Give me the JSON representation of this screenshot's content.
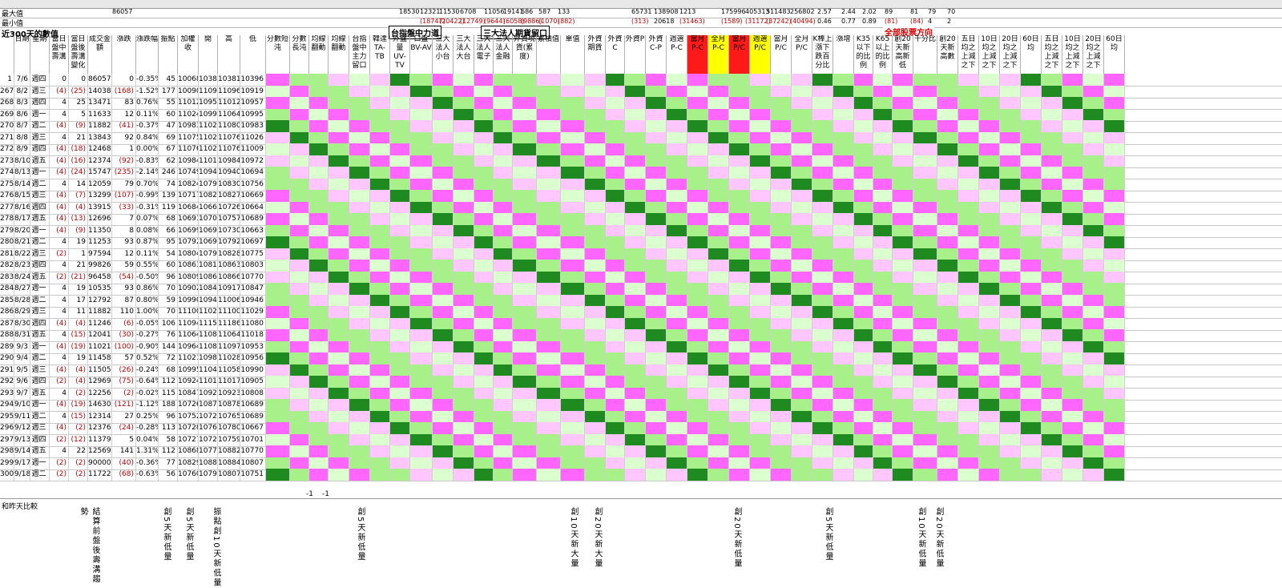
{
  "top": {
    "row1_label": "最大值",
    "row2_label": "最小值",
    "row1_values": [
      [
        "86057",
        ""
      ],
      [
        "18530",
        ""
      ],
      [
        "12321",
        ""
      ],
      [
        "11530",
        ""
      ],
      [
        "6708",
        ""
      ],
      [
        "11056",
        ""
      ],
      [
        "19141",
        ""
      ],
      [
        "686",
        ""
      ],
      [
        "587",
        ""
      ],
      [
        "133",
        ""
      ],
      [
        "65731",
        ""
      ],
      [
        "138908",
        ""
      ],
      [
        "1213",
        ""
      ],
      [
        "175996",
        ""
      ],
      [
        "405313",
        ""
      ],
      [
        "511483",
        ""
      ],
      [
        "256802",
        ""
      ],
      [
        "2.57",
        ""
      ],
      [
        "2.44",
        ""
      ],
      [
        "2.02",
        ""
      ],
      [
        "89",
        ""
      ],
      [
        "81",
        ""
      ],
      [
        "79",
        ""
      ],
      [
        "70",
        ""
      ]
    ],
    "row2_values": [
      [
        "(18747)",
        "neg"
      ],
      [
        "(20422)",
        "neg"
      ],
      [
        "(12749)",
        "neg"
      ],
      [
        "(9644)",
        "neg"
      ],
      [
        "(6058)",
        "neg"
      ],
      [
        "(9886)",
        "neg"
      ],
      [
        "(1070)",
        "neg"
      ],
      [
        "(882)",
        "neg"
      ],
      [
        "(313)",
        "neg"
      ],
      [
        "20618",
        ""
      ],
      [
        "(31463)",
        "neg"
      ],
      [
        "(1589)",
        "neg"
      ],
      [
        "(31172)",
        "neg"
      ],
      [
        "(37242)",
        "neg"
      ],
      [
        "(40494)",
        "neg"
      ],
      [
        "0.46",
        ""
      ],
      [
        "0.77",
        ""
      ],
      [
        "0.89",
        ""
      ],
      [
        "(81)",
        "neg"
      ],
      [
        "(84)",
        "neg"
      ],
      [
        "4",
        ""
      ],
      [
        "2",
        ""
      ]
    ]
  },
  "title_300": "近300天的數值",
  "sections": {
    "taifex": "台指盤中力道",
    "inst": "三大法人期貨留口",
    "all_dir": "全部股票方向"
  },
  "headers": [
    "",
    "日期",
    "星期",
    "當日盤中壽溝",
    "當日盤後壽溝變化",
    "成交金額",
    "漲跌",
    "漲跌幅",
    "振點",
    "加權收",
    "開",
    "高",
    "低",
    "分數短沌",
    "分數長沌",
    "均線翻動",
    "均線翻動",
    "台指盤中主力留口",
    "韓達TA-TB",
    "外盤量UV-TV",
    "口盤BV-AV",
    "三大法人小台",
    "三大法人大台",
    "三大法人電子",
    "三大法人金融",
    "外資現貨(累度)",
    "累積值",
    "單值",
    "外資期貨",
    "外資C",
    "外資P",
    "外資C-P",
    "週選P-C",
    "當月P-C",
    "全月P-C",
    "當月P/C",
    "週選P/C",
    "當月P/C",
    "全月P/C",
    "K棒上漲下跌百分比",
    "漲增",
    "K35以下的比例",
    "K65以上的比例",
    "創20天新高新低",
    "千分比",
    "創20天新高數",
    "五日均之上減之下",
    "10日均之上減之下",
    "20日均之上減之下",
    "60日均",
    "五日均之上減之下",
    "10日均之上減之下",
    "20日均之上減之下",
    "60日均"
  ],
  "rows": [
    {
      "n": "1",
      "date": "7/6",
      "wd": "週四",
      "v": [
        "0",
        "0",
        "86057",
        "0",
        "-0.35%",
        "45",
        "10068",
        "10381",
        "10381",
        "10396"
      ]
    },
    {
      "n": "267",
      "date": "8/2",
      "wd": "週三",
      "v": [
        "(4)",
        "(25)",
        "140389",
        "(168)",
        "-1.52%",
        "177",
        "10090",
        "11096",
        "11096",
        "10919"
      ]
    },
    {
      "n": "268",
      "date": "8/3",
      "wd": "週四",
      "v": [
        "4",
        "25",
        "134716",
        "83",
        "0.76%",
        "55",
        "11012",
        "10957",
        "11012",
        "10957"
      ]
    },
    {
      "n": "269",
      "date": "8/6",
      "wd": "週一",
      "v": [
        "4",
        "5",
        "116336",
        "12",
        "0.11%",
        "60",
        "11024",
        "10997",
        "11064",
        "10995"
      ]
    },
    {
      "n": "270",
      "date": "8/7",
      "wd": "週二",
      "v": [
        "(4)",
        "(9)",
        "118827",
        "(41)",
        "-0.37%",
        "47",
        "10983",
        "11025",
        "11080",
        "10983"
      ]
    },
    {
      "n": "271",
      "date": "8/8",
      "wd": "週三",
      "v": [
        "4",
        "21",
        "138432",
        "92",
        "0.84%",
        "69",
        "11075",
        "11026",
        "11076",
        "11026"
      ]
    },
    {
      "n": "272",
      "date": "8/9",
      "wd": "週四",
      "v": [
        "(4)",
        "(18)",
        "124687",
        "1",
        "0.00%",
        "67",
        "11076",
        "11023",
        "11076",
        "11009"
      ]
    },
    {
      "n": "273",
      "date": "8/10",
      "wd": "週五",
      "v": [
        "(4)",
        "(16)",
        "123745",
        "(92)",
        "-0.83%",
        "62",
        "10984",
        "11010",
        "10984",
        "10972"
      ]
    },
    {
      "n": "274",
      "date": "8/13",
      "wd": "週一",
      "v": [
        "(4)",
        "(24)",
        "157474",
        "(235)",
        "-2.14%",
        "246",
        "10749",
        "10940",
        "10940",
        "10694"
      ]
    },
    {
      "n": "275",
      "date": "8/14",
      "wd": "週二",
      "v": [
        "4",
        "14",
        "120596",
        "79",
        "0.70%",
        "74",
        "10824",
        "10798",
        "10830",
        "10756"
      ]
    },
    {
      "n": "276",
      "date": "8/15",
      "wd": "週三",
      "v": [
        "(4)",
        "(7)",
        "132990",
        "(107)",
        "-0.99%",
        "139",
        "10717",
        "10827",
        "10827",
        "10669"
      ]
    },
    {
      "n": "277",
      "date": "8/16",
      "wd": "週四",
      "v": [
        "(4)",
        "(4)",
        "139151",
        "(33)",
        "-0.31%",
        "119",
        "10684",
        "10664",
        "10726",
        "10664"
      ]
    },
    {
      "n": "278",
      "date": "8/17",
      "wd": "週五",
      "v": [
        "(4)",
        "(13)",
        "126965",
        "7",
        "0.07%",
        "68",
        "10691",
        "10708",
        "10757",
        "10689"
      ]
    },
    {
      "n": "279",
      "date": "8/20",
      "wd": "週一",
      "v": [
        "(4)",
        "(9)",
        "113508",
        "8",
        "0.08%",
        "66",
        "10699",
        "10699",
        "10730",
        "10663"
      ]
    },
    {
      "n": "280",
      "date": "8/21",
      "wd": "週二",
      "v": [
        "4",
        "19",
        "112531",
        "93",
        "0.87%",
        "95",
        "10792",
        "10697",
        "10792",
        "10697"
      ]
    },
    {
      "n": "281",
      "date": "8/22",
      "wd": "週三",
      "v": [
        "(2)",
        "1",
        "97594",
        "12",
        "0.11%",
        "54",
        "10804",
        "10790",
        "10828",
        "10775"
      ]
    },
    {
      "n": "282",
      "date": "8/23",
      "wd": "週四",
      "v": [
        "4",
        "21",
        "99826",
        "59",
        "0.55%",
        "60",
        "10863",
        "10817",
        "10863",
        "10803"
      ]
    },
    {
      "n": "283",
      "date": "8/24",
      "wd": "週五",
      "v": [
        "(2)",
        "(21)",
        "96458",
        "(54)",
        "-0.50%",
        "96",
        "10809",
        "10866",
        "10866",
        "10770"
      ]
    },
    {
      "n": "284",
      "date": "8/27",
      "wd": "週一",
      "v": [
        "4",
        "19",
        "105354",
        "93",
        "0.86%",
        "70",
        "10902",
        "10847",
        "10917",
        "10847"
      ]
    },
    {
      "n": "285",
      "date": "8/28",
      "wd": "週二",
      "v": [
        "4",
        "17",
        "127927",
        "87",
        "0.80%",
        "59",
        "10990",
        "10946",
        "11006",
        "10946"
      ]
    },
    {
      "n": "286",
      "date": "8/29",
      "wd": "週三",
      "v": [
        "4",
        "11",
        "118826",
        "110",
        "1.00%",
        "70",
        "11100",
        "11029",
        "11100",
        "11029"
      ]
    },
    {
      "n": "287",
      "date": "8/30",
      "wd": "週四",
      "v": [
        "(4)",
        "(4)",
        "112461",
        "(6)",
        "-0.05%",
        "106",
        "11094",
        "11154",
        "11186",
        "11080"
      ]
    },
    {
      "n": "288",
      "date": "8/31",
      "wd": "週五",
      "v": [
        "4",
        "(15)",
        "120418",
        "(30)",
        "-0.27%",
        "76",
        "11064",
        "11087",
        "11064",
        "11018"
      ]
    },
    {
      "n": "289",
      "date": "9/3",
      "wd": "週一",
      "v": [
        "(4)",
        "(19)",
        "110215",
        "(100)",
        "-0.90%",
        "144",
        "10964",
        "11088",
        "11097",
        "10953"
      ]
    },
    {
      "n": "290",
      "date": "9/4",
      "wd": "週二",
      "v": [
        "4",
        "19",
        "114589",
        "57",
        "0.52%",
        "72",
        "11021",
        "10981",
        "11028",
        "10956"
      ]
    },
    {
      "n": "291",
      "date": "9/5",
      "wd": "週三",
      "v": [
        "(4)",
        "(4)",
        "115052",
        "(26)",
        "-0.24%",
        "68",
        "10995",
        "11042",
        "11058",
        "10990"
      ]
    },
    {
      "n": "292",
      "date": "9/6",
      "wd": "週四",
      "v": [
        "(2)",
        "(4)",
        "129698",
        "(75)",
        "-0.64%",
        "112",
        "10924",
        "11017",
        "11017",
        "10905"
      ]
    },
    {
      "n": "293",
      "date": "9/7",
      "wd": "週五",
      "v": [
        "4",
        "(2)",
        "122561",
        "(2)",
        "-0.02%",
        "115",
        "10847",
        "10923",
        "10923",
        "10808"
      ]
    },
    {
      "n": "294",
      "date": "9/10",
      "wd": "週一",
      "v": [
        "(4)",
        "(19)",
        "146308",
        "(121)",
        "-1.12%",
        "188",
        "10726",
        "10870",
        "10878",
        "10689"
      ]
    },
    {
      "n": "295",
      "date": "9/11",
      "wd": "週二",
      "v": [
        "4",
        "(15)",
        "123149",
        "27",
        "0.25%",
        "96",
        "10752",
        "10729",
        "10765",
        "10689"
      ]
    },
    {
      "n": "296",
      "date": "9/12",
      "wd": "週三",
      "v": [
        "(4)",
        "(2)",
        "123764",
        "(24)",
        "-0.28%",
        "113",
        "10728",
        "10763",
        "10780",
        "10667"
      ]
    },
    {
      "n": "297",
      "date": "9/13",
      "wd": "週四",
      "v": [
        "(2)",
        "(12)",
        "113791",
        "5",
        "0.04%",
        "58",
        "10727",
        "10727",
        "10759",
        "10701"
      ]
    },
    {
      "n": "298",
      "date": "9/14",
      "wd": "週五",
      "v": [
        "4",
        "22",
        "125697",
        "141",
        "1.31%",
        "112",
        "10868",
        "10777",
        "10882",
        "10770"
      ]
    },
    {
      "n": "299",
      "date": "9/17",
      "wd": "週一",
      "v": [
        "(2)",
        "(2)",
        "90000",
        "(40)",
        "-0.36%",
        "77",
        "10829",
        "10882",
        "10884",
        "10807"
      ]
    },
    {
      "n": "300",
      "date": "9/18",
      "wd": "週二",
      "v": [
        "(2)",
        "(2)",
        "117228",
        "(68)",
        "-0.63%",
        "56",
        "10760",
        "10794",
        "10807",
        "10751"
      ]
    }
  ],
  "bottom": {
    "caption": "和昨天比較",
    "notes": [
      "結算前盤後壽溝趨勢",
      "創5天新低量",
      "創5天新低量",
      "振點創10天新低量",
      "創5天新低量",
      "創10天新大量",
      "創20天新大量",
      "創20天新低量",
      "創5天新低量",
      "創10天新低量",
      "創20天新低量"
    ],
    "minus1": "-1",
    "minus2": "-1"
  },
  "colors": {
    "green": "#a8f08a",
    "magenta": "#ff66ff",
    "pink": "#ffc6ff",
    "darkgreen": "#1f8a1f",
    "red": "#ff0000",
    "yellow": "#ffff00"
  }
}
